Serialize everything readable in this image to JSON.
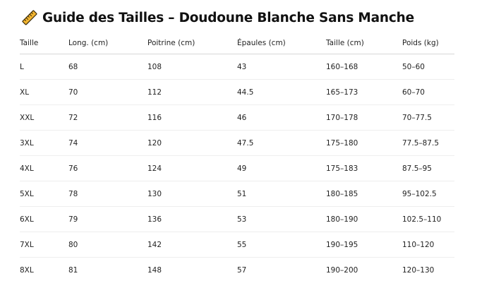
{
  "header": {
    "title": "Guide des Tailles – Doudoune Blanche Sans Manche",
    "icon": "ruler-icon"
  },
  "table": {
    "columns": [
      "Taille",
      "Long. (cm)",
      "Poitrine (cm)",
      "Épaules (cm)",
      "Taille (cm)",
      "Poids (kg)"
    ],
    "rows": [
      [
        "L",
        "68",
        "108",
        "43",
        "160–168",
        "50–60"
      ],
      [
        "XL",
        "70",
        "112",
        "44.5",
        "165–173",
        "60–70"
      ],
      [
        "XXL",
        "72",
        "116",
        "46",
        "170–178",
        "70–77.5"
      ],
      [
        "3XL",
        "74",
        "120",
        "47.5",
        "175–180",
        "77.5–87.5"
      ],
      [
        "4XL",
        "76",
        "124",
        "49",
        "175–183",
        "87.5–95"
      ],
      [
        "5XL",
        "78",
        "130",
        "51",
        "180–185",
        "95–102.5"
      ],
      [
        "6XL",
        "79",
        "136",
        "53",
        "180–190",
        "102.5–110"
      ],
      [
        "7XL",
        "80",
        "142",
        "55",
        "190–195",
        "110–120"
      ],
      [
        "8XL",
        "81",
        "148",
        "57",
        "190–200",
        "120–130"
      ]
    ]
  },
  "colors": {
    "ruler_fill": "#f2b531",
    "ruler_stroke": "#3a2a08",
    "text": "#222222",
    "divider": "#eeeeee"
  }
}
